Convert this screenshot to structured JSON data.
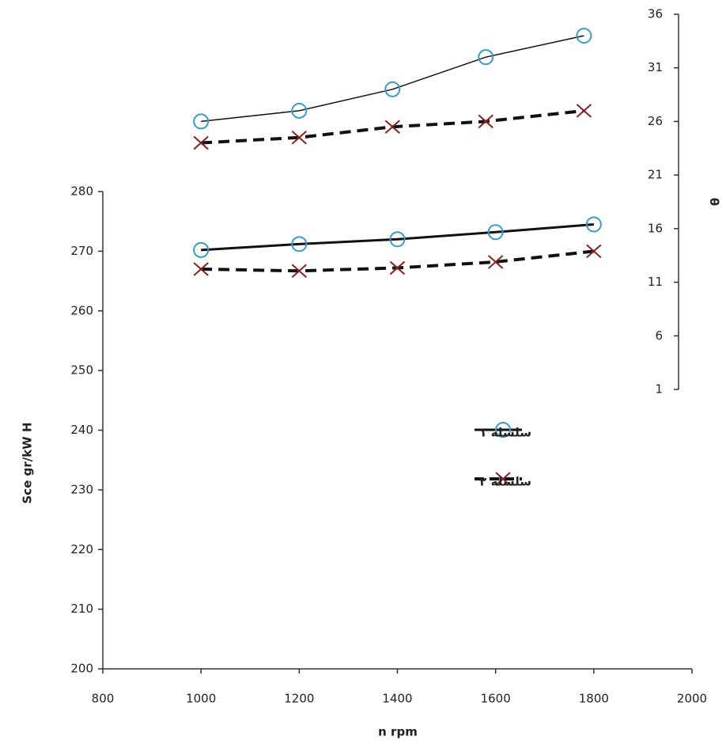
{
  "chart_data": [
    {
      "type": "line",
      "x": [
        1000,
        1200,
        1400,
        1600,
        1800
      ],
      "series": [
        {
          "name": "سلسله ۱",
          "color": "#3a9bc8",
          "values": [
            270.2,
            271.2,
            272,
            273.2,
            274.5
          ]
        },
        {
          "name": "سلسله ۲",
          "color": "#8b2020",
          "values": [
            267,
            266.7,
            267.2,
            268.2,
            270
          ]
        }
      ],
      "xlim": [
        800,
        2000
      ],
      "xticks": [
        800,
        1000,
        1200,
        1400,
        1600,
        1800,
        2000
      ],
      "ylim": [
        200,
        280
      ],
      "yticks": [
        200,
        210,
        220,
        230,
        240,
        250,
        260,
        270,
        280
      ],
      "xlabel": "n rpm",
      "ylabel": "Sce gr/kW H",
      "legend": "right"
    },
    {
      "type": "line",
      "x": [
        1000,
        1200,
        1390,
        1580,
        1780
      ],
      "series": [
        {
          "color": "#3a9bc8",
          "values": [
            26,
            27,
            29,
            32,
            34
          ]
        },
        {
          "color": "#8b2020",
          "values": [
            24,
            24.5,
            25.5,
            26,
            27
          ]
        }
      ],
      "ylim": [
        1,
        36
      ],
      "yticks": [
        1,
        6,
        11,
        16,
        21,
        26,
        31,
        36
      ],
      "ylabel": "θ"
    }
  ]
}
